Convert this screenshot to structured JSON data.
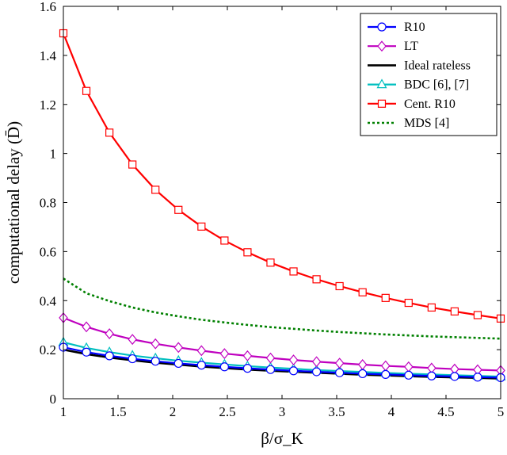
{
  "chart_data": {
    "type": "line",
    "title": "",
    "xlabel": "β/σ_K",
    "ylabel": "computational delay (D̄)",
    "xlim": [
      1,
      5
    ],
    "ylim": [
      0,
      1.6
    ],
    "grid": false,
    "legend_position": "top-right",
    "x_ticks": [
      "1",
      "1.5",
      "2",
      "2.5",
      "3",
      "3.5",
      "4",
      "4.5",
      "5"
    ],
    "y_ticks": [
      "0",
      "0.2",
      "0.4",
      "0.6",
      "0.8",
      "1",
      "1.2",
      "1.4",
      "1.6"
    ],
    "x": [
      1.0,
      1.2105,
      1.4211,
      1.6316,
      1.8421,
      2.0526,
      2.2632,
      2.4737,
      2.6842,
      2.8947,
      3.1053,
      3.3158,
      3.5263,
      3.7368,
      3.9474,
      4.1579,
      4.3684,
      4.5789,
      4.7895,
      5.0
    ],
    "series": [
      {
        "name": "R10",
        "color": "#0000ff",
        "marker": "circle",
        "values": [
          0.21,
          0.19,
          0.175,
          0.163,
          0.153,
          0.144,
          0.137,
          0.13,
          0.124,
          0.119,
          0.114,
          0.11,
          0.106,
          0.102,
          0.099,
          0.096,
          0.093,
          0.091,
          0.088,
          0.086
        ]
      },
      {
        "name": "LT",
        "color": "#bf00bf",
        "marker": "diamond",
        "values": [
          0.33,
          0.293,
          0.265,
          0.242,
          0.224,
          0.209,
          0.196,
          0.184,
          0.175,
          0.166,
          0.158,
          0.151,
          0.145,
          0.139,
          0.134,
          0.13,
          0.125,
          0.121,
          0.118,
          0.115
        ]
      },
      {
        "name": "Ideal rateless",
        "color": "#000000",
        "marker": "none",
        "values": [
          0.2,
          0.182,
          0.168,
          0.157,
          0.147,
          0.139,
          0.131,
          0.125,
          0.119,
          0.114,
          0.11,
          0.106,
          0.102,
          0.098,
          0.095,
          0.092,
          0.089,
          0.087,
          0.085,
          0.082
        ]
      },
      {
        "name": "BDC [6], [7]",
        "color": "#00bfbf",
        "marker": "triangle",
        "values": [
          0.23,
          0.207,
          0.19,
          0.176,
          0.165,
          0.155,
          0.147,
          0.14,
          0.133,
          0.127,
          0.122,
          0.117,
          0.113,
          0.109,
          0.105,
          0.102,
          0.099,
          0.096,
          0.093,
          0.09
        ]
      },
      {
        "name": "Cent. R10",
        "color": "#ff0000",
        "marker": "square",
        "values": [
          1.49,
          1.255,
          1.085,
          0.955,
          0.852,
          0.77,
          0.702,
          0.645,
          0.597,
          0.555,
          0.519,
          0.487,
          0.459,
          0.434,
          0.411,
          0.391,
          0.372,
          0.356,
          0.341,
          0.327
        ]
      },
      {
        "name": "MDS [4]",
        "color": "#008000",
        "marker": "none",
        "dashed": true,
        "values": [
          0.49,
          0.43,
          0.398,
          0.372,
          0.352,
          0.336,
          0.322,
          0.311,
          0.301,
          0.292,
          0.285,
          0.278,
          0.272,
          0.267,
          0.262,
          0.258,
          0.254,
          0.251,
          0.248,
          0.245
        ]
      }
    ]
  }
}
